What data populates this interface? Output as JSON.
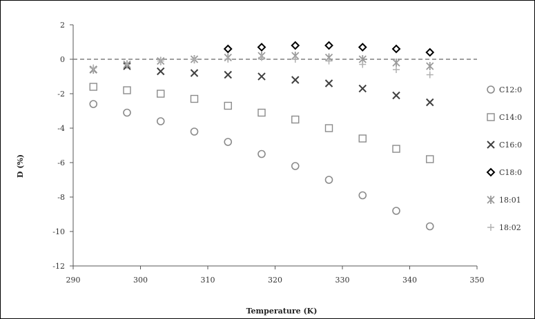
{
  "chart_data": {
    "type": "scatter",
    "title": "",
    "xlabel": "Temperature (K)",
    "ylabel": "D (%)",
    "xlim": [
      290,
      350
    ],
    "ylim": [
      -12,
      2
    ],
    "xticks": [
      290,
      300,
      310,
      320,
      330,
      340,
      350
    ],
    "yticks": [
      2,
      0,
      -2,
      -4,
      -6,
      -8,
      -10,
      -12
    ],
    "reference_line": {
      "y": 0,
      "style": "dashed"
    },
    "grid": false,
    "legend_position": "right",
    "series": [
      {
        "name": "C12:0",
        "marker": "circle",
        "color": "#8a8a8a",
        "points": [
          [
            293,
            -2.6
          ],
          [
            298,
            -3.1
          ],
          [
            303,
            -3.6
          ],
          [
            308,
            -4.2
          ],
          [
            313,
            -4.8
          ],
          [
            318,
            -5.5
          ],
          [
            323,
            -6.2
          ],
          [
            328,
            -7.0
          ],
          [
            333,
            -7.9
          ],
          [
            338,
            -8.8
          ],
          [
            343,
            -9.7
          ]
        ]
      },
      {
        "name": "C14:0",
        "marker": "square",
        "color": "#8a8a8a",
        "points": [
          [
            293,
            -1.6
          ],
          [
            298,
            -1.8
          ],
          [
            303,
            -2.0
          ],
          [
            308,
            -2.3
          ],
          [
            313,
            -2.7
          ],
          [
            318,
            -3.1
          ],
          [
            323,
            -3.5
          ],
          [
            328,
            -4.0
          ],
          [
            333,
            -4.6
          ],
          [
            338,
            -5.2
          ],
          [
            343,
            -5.8
          ]
        ]
      },
      {
        "name": "C16:0",
        "marker": "x",
        "color": "#404040",
        "points": [
          [
            293,
            -0.6
          ],
          [
            298,
            -0.4
          ],
          [
            303,
            -0.7
          ],
          [
            308,
            -0.8
          ],
          [
            313,
            -0.9
          ],
          [
            318,
            -1.0
          ],
          [
            323,
            -1.2
          ],
          [
            328,
            -1.4
          ],
          [
            333,
            -1.7
          ],
          [
            338,
            -2.1
          ],
          [
            343,
            -2.5
          ]
        ]
      },
      {
        "name": "C18:0",
        "marker": "diamond",
        "color": "#000000",
        "points": [
          [
            313,
            0.6
          ],
          [
            318,
            0.7
          ],
          [
            323,
            0.8
          ],
          [
            328,
            0.8
          ],
          [
            333,
            0.7
          ],
          [
            338,
            0.6
          ],
          [
            343,
            0.4
          ]
        ]
      },
      {
        "name": "18:01",
        "marker": "asterisk",
        "color": "#9a9a9a",
        "points": [
          [
            293,
            -0.6
          ],
          [
            298,
            -0.3
          ],
          [
            303,
            -0.1
          ],
          [
            308,
            0.0
          ],
          [
            313,
            0.1
          ],
          [
            318,
            0.2
          ],
          [
            323,
            0.2
          ],
          [
            328,
            0.1
          ],
          [
            333,
            0.0
          ],
          [
            338,
            -0.2
          ],
          [
            343,
            -0.4
          ]
        ]
      },
      {
        "name": "18:02",
        "marker": "plus",
        "color": "#b0b0b0",
        "points": [
          [
            293,
            -0.5
          ],
          [
            298,
            -0.3
          ],
          [
            303,
            -0.1
          ],
          [
            308,
            0.0
          ],
          [
            313,
            0.0
          ],
          [
            318,
            0.1
          ],
          [
            323,
            0.0
          ],
          [
            328,
            -0.1
          ],
          [
            333,
            -0.3
          ],
          [
            338,
            -0.6
          ],
          [
            343,
            -0.9
          ]
        ]
      }
    ]
  }
}
